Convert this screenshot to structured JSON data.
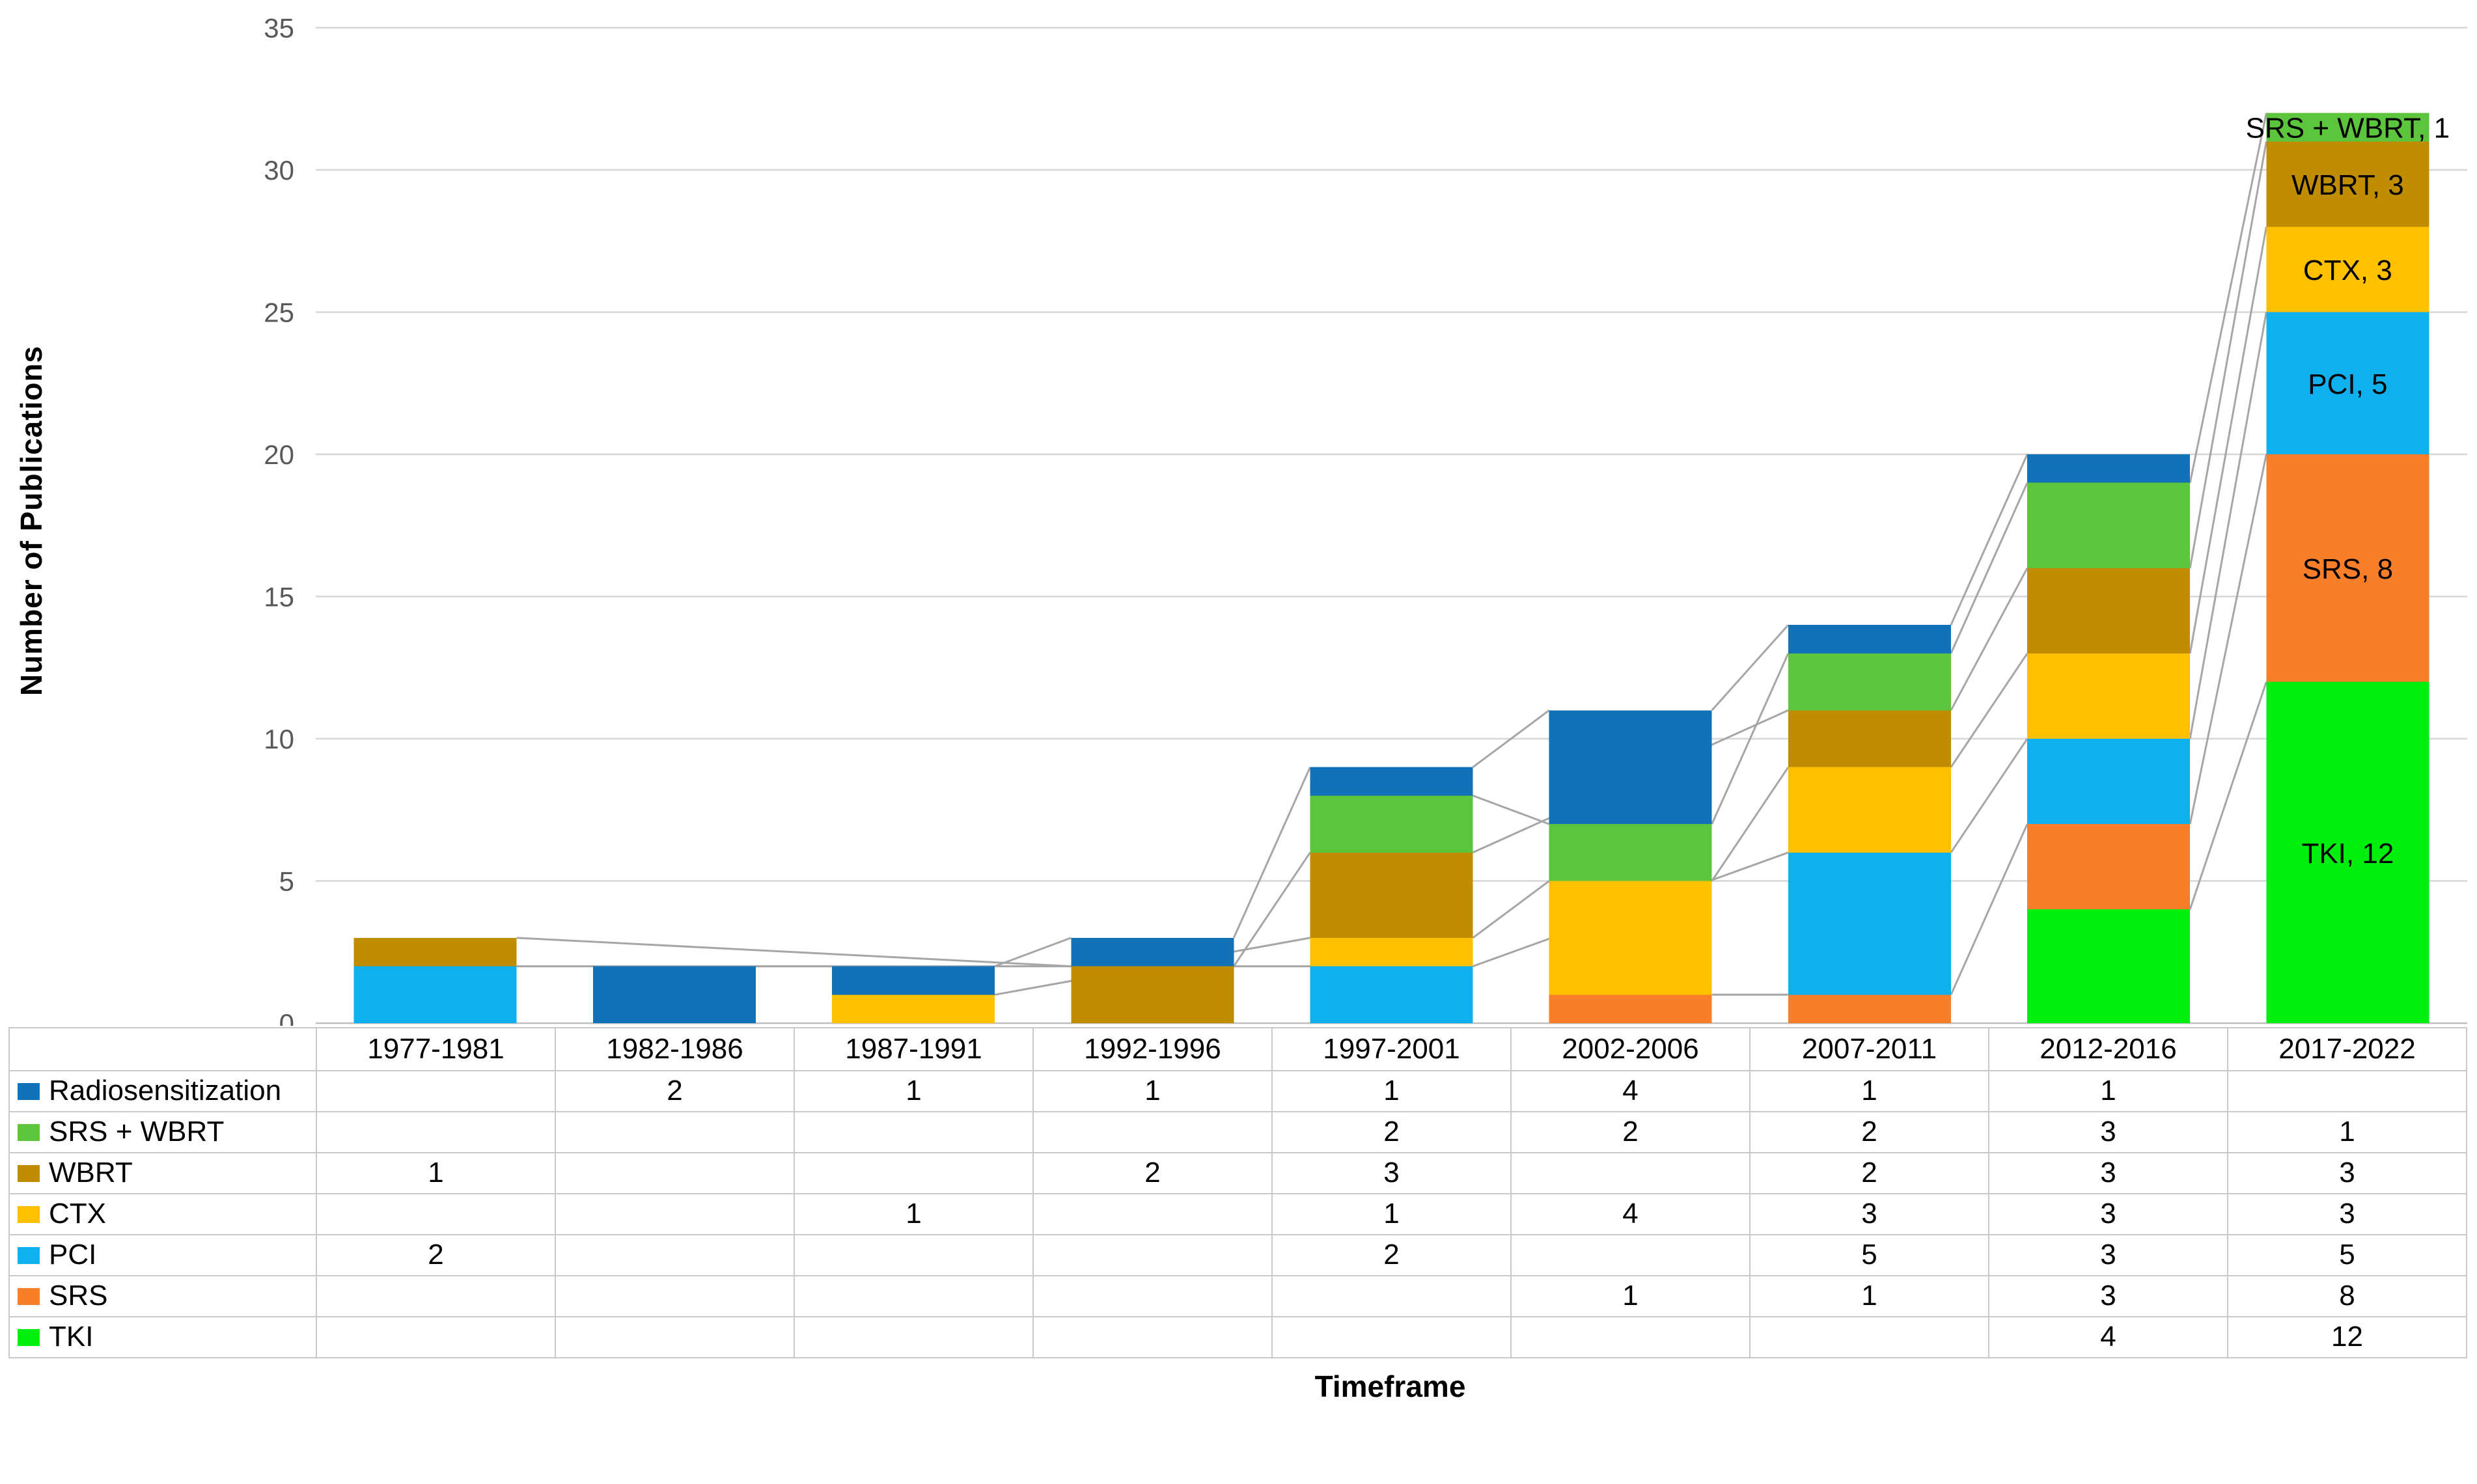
{
  "chart_data": {
    "type": "bar",
    "stacked": true,
    "title": "",
    "xlabel": "Timeframe",
    "ylabel": "Number of Publications",
    "categories": [
      "1977-1981",
      "1982-1986",
      "1987-1991",
      "1992-1996",
      "1997-2001",
      "2002-2006",
      "2007-2011",
      "2012-2016",
      "2017-2022"
    ],
    "ylim": [
      0,
      35
    ],
    "ytick_step": 5,
    "ytick_labels": [
      "0",
      "5",
      "10",
      "15",
      "20",
      "25",
      "30",
      "35"
    ],
    "grid": true,
    "legend_position": "left-table",
    "series": [
      {
        "name": "Radiosensitization",
        "color": "#1272B8",
        "values": [
          null,
          2,
          1,
          1,
          1,
          4,
          1,
          1,
          null
        ]
      },
      {
        "name": "SRS + WBRT",
        "color": "#5CC43D",
        "values": [
          null,
          null,
          null,
          null,
          2,
          2,
          2,
          3,
          1
        ]
      },
      {
        "name": "WBRT",
        "color": "#C08C00",
        "values": [
          1,
          null,
          null,
          2,
          3,
          null,
          2,
          3,
          3
        ]
      },
      {
        "name": "CTX",
        "color": "#FFC000",
        "values": [
          null,
          null,
          1,
          null,
          1,
          4,
          3,
          3,
          3
        ]
      },
      {
        "name": "PCI",
        "color": "#0FB0EE",
        "values": [
          2,
          null,
          null,
          null,
          2,
          null,
          5,
          3,
          5
        ]
      },
      {
        "name": "SRS",
        "color": "#F87E2A",
        "values": [
          null,
          null,
          null,
          null,
          null,
          1,
          1,
          3,
          8
        ]
      },
      {
        "name": "TKI",
        "color": "#00EF0F",
        "values": [
          null,
          null,
          null,
          null,
          null,
          null,
          null,
          4,
          12
        ]
      }
    ],
    "stack_order_bottom_to_top": [
      "TKI",
      "SRS",
      "PCI",
      "CTX",
      "WBRT",
      "SRS + WBRT",
      "Radiosensitization"
    ],
    "data_labels": [
      {
        "series": "SRS + WBRT",
        "text": "SRS + WBRT, 1"
      },
      {
        "series": "WBRT",
        "text": "WBRT, 3"
      },
      {
        "series": "CTX",
        "text": "CTX, 3"
      },
      {
        "series": "PCI",
        "text": "PCI, 5"
      },
      {
        "series": "SRS",
        "text": "SRS, 8"
      },
      {
        "series": "TKI",
        "text": "TKI, 12"
      }
    ],
    "colors": {
      "gridline": "#D6D6D6",
      "axis_line": "#BFBFBF",
      "series_line": "#A6A6A6",
      "tick_label": "#595959",
      "data_label": "#000000"
    }
  }
}
